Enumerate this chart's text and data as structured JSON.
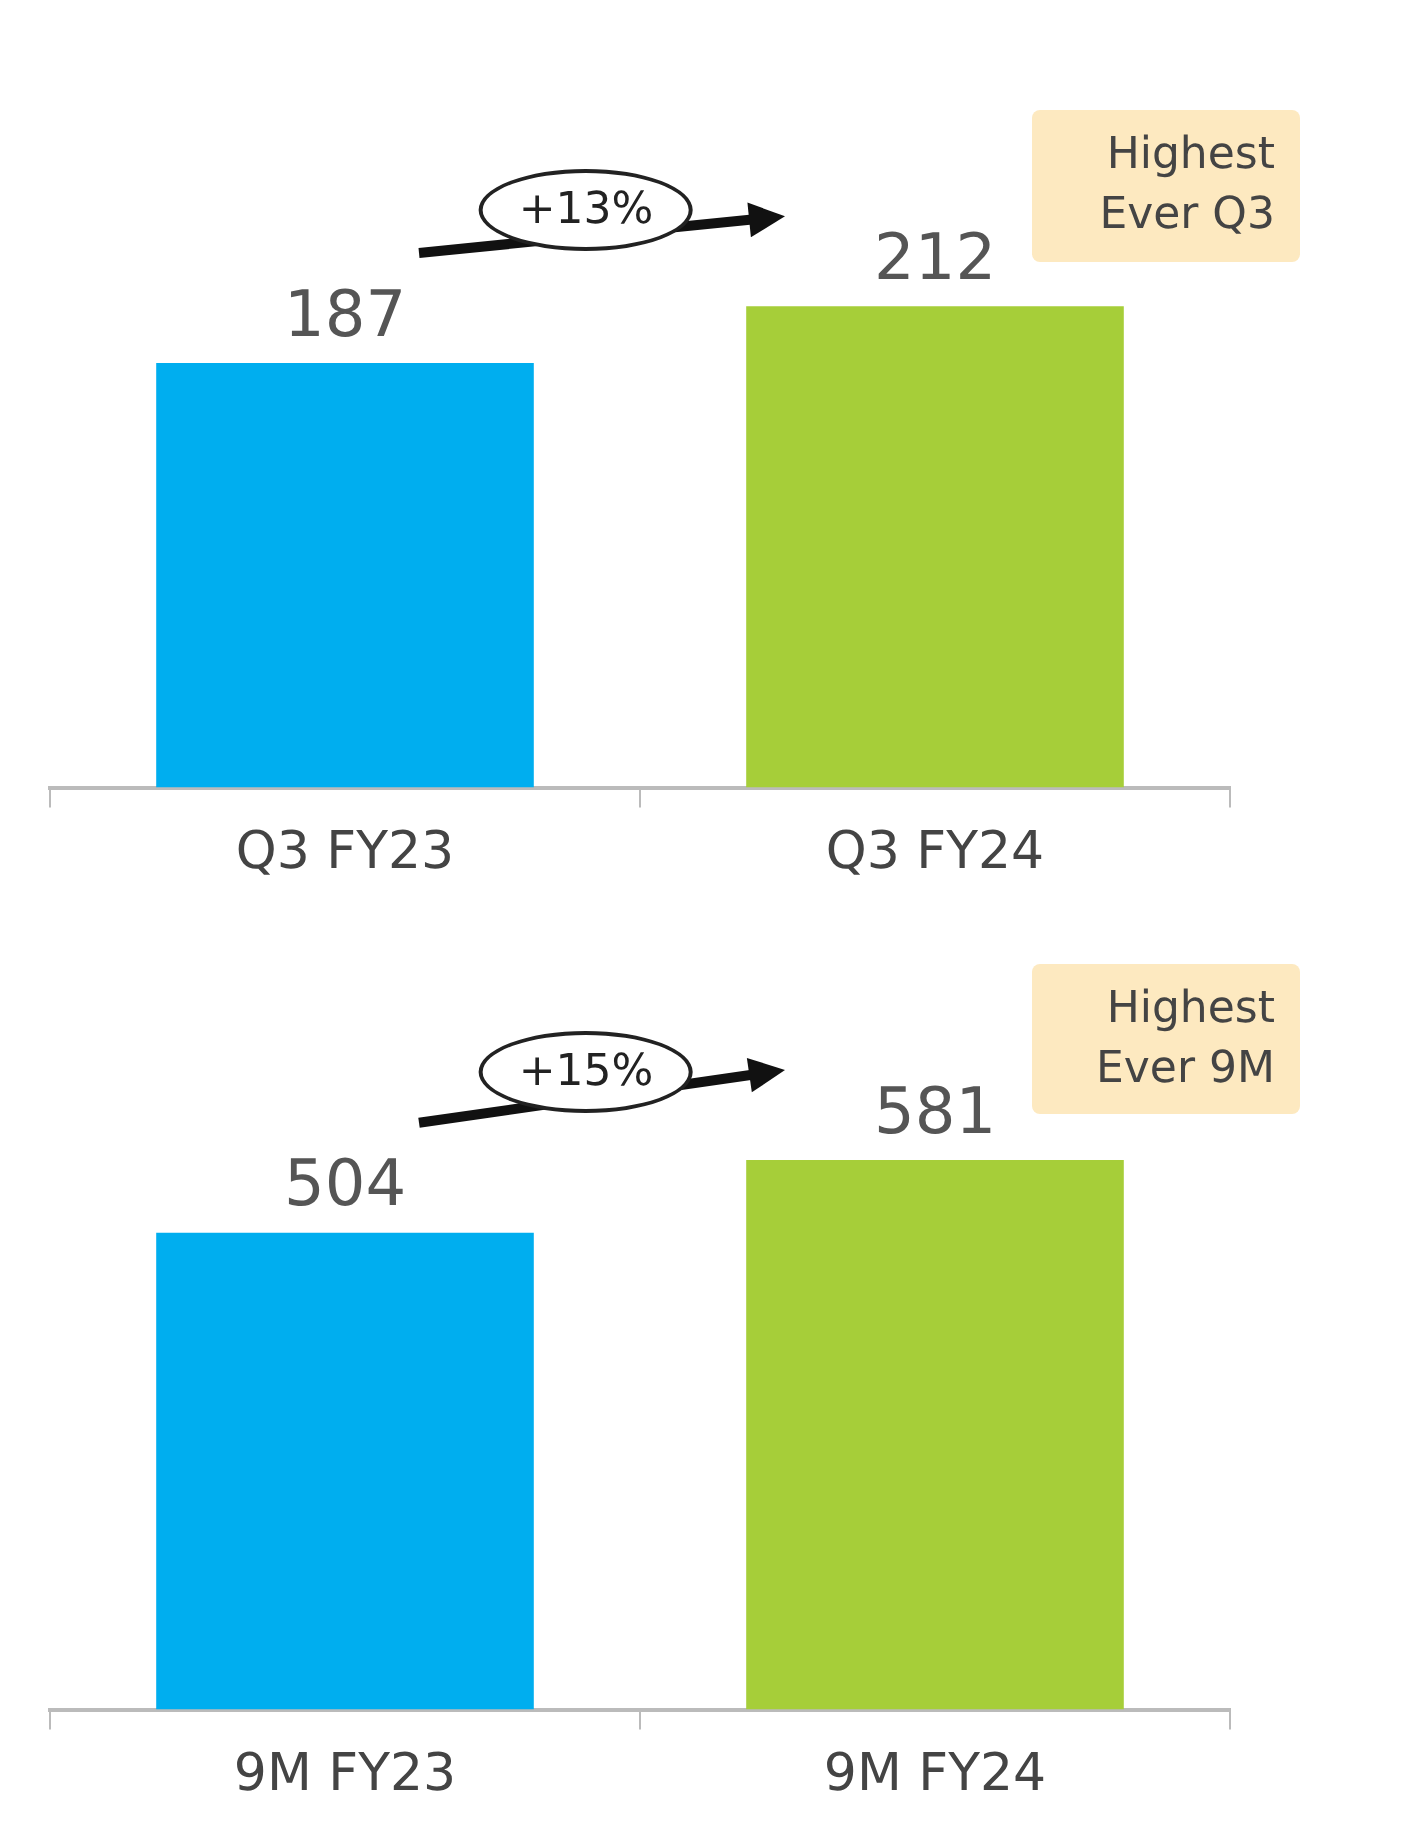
{
  "chart_data": [
    {
      "type": "bar",
      "categories": [
        "Q3 FY23",
        "Q3 FY24"
      ],
      "values": [
        187,
        212
      ],
      "colors": [
        "#00aeef",
        "#a6ce39"
      ],
      "data_labels": true,
      "tick_labels": "x",
      "annotations": [
        "+13%",
        "Highest Ever Q3"
      ]
    },
    {
      "type": "bar",
      "categories": [
        "9M FY23",
        "9M FY24"
      ],
      "values": [
        504,
        581
      ],
      "colors": [
        "#00aeef",
        "#a6ce39"
      ],
      "data_labels": true,
      "tick_labels": "x",
      "annotations": [
        "+15%",
        "Highest Ever 9M"
      ]
    }
  ]
}
